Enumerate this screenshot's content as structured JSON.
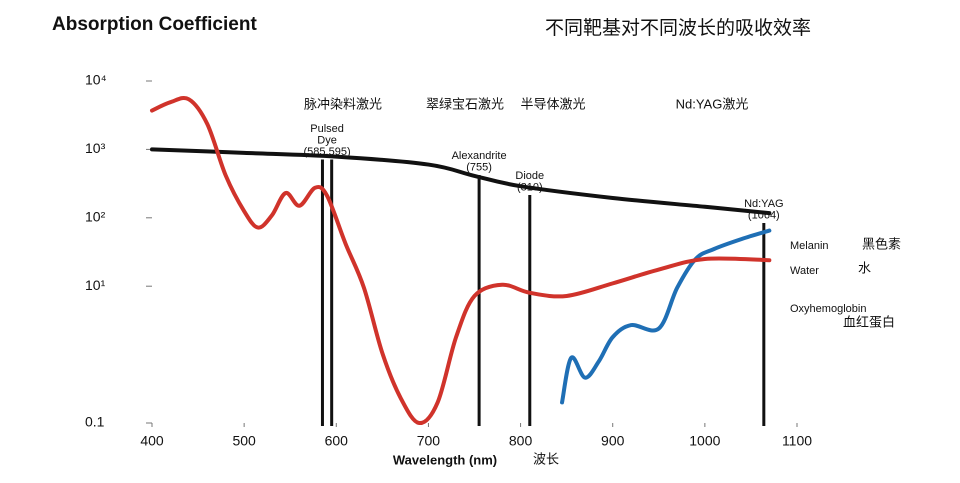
{
  "chart_data": {
    "type": "line",
    "title": "Absorption Coefficient",
    "subtitle": "不同靶基对不同波长的吸收效率",
    "xlabel": "Wavelength (nm)",
    "xlabel_cn": "波长",
    "xlim": [
      400,
      1100
    ],
    "xticks": [
      400,
      500,
      600,
      700,
      800,
      900,
      1000,
      1100
    ],
    "ylim": [
      0.1,
      10000
    ],
    "ylog": true,
    "yticks": [
      0.1,
      {
        "value": 10,
        "label": "10¹"
      },
      {
        "value": 100,
        "label": "10²"
      },
      {
        "value": 1000,
        "label": "10³"
      },
      {
        "value": 10000,
        "label": "10⁴"
      }
    ],
    "series": [
      {
        "name": "Melanin",
        "name_cn": "黑色素",
        "color": "#111111",
        "x": [
          400,
          500,
          600,
          700,
          750,
          800,
          900,
          1000,
          1070
        ],
        "values": [
          1000,
          890,
          785,
          600,
          410,
          290,
          195,
          145,
          117
        ]
      },
      {
        "name": "Water",
        "name_cn": "水",
        "color": "#1f6fb5",
        "x": [
          845,
          855,
          870,
          885,
          900,
          920,
          950,
          970,
          990,
          1010,
          1040,
          1070
        ],
        "values": [
          0.2,
          0.9,
          0.46,
          0.8,
          1.8,
          2.7,
          2.4,
          9.5,
          25,
          35,
          49,
          65
        ]
      },
      {
        "name": "Oxyhemoglobin",
        "name_cn": "血红蛋白",
        "color": "#d0332b",
        "x": [
          400,
          420,
          440,
          460,
          480,
          500,
          515,
          530,
          545,
          560,
          577,
          590,
          610,
          630,
          650,
          670,
          690,
          710,
          730,
          750,
          780,
          810,
          850,
          900,
          950,
          1000,
          1070
        ],
        "values": [
          3700,
          4900,
          5400,
          2350,
          415,
          125,
          72,
          108,
          230,
          150,
          275,
          210,
          42,
          9.5,
          1.05,
          0.23,
          0.1,
          0.2,
          1.8,
          7.2,
          10.5,
          8,
          7.2,
          11,
          17.5,
          25,
          24
        ]
      }
    ],
    "lasers": [
      {
        "name_cn": "脉冲染料激光",
        "label": [
          "Pulsed",
          "Dye",
          "(585,595)"
        ],
        "wavelengths": [
          585,
          595
        ]
      },
      {
        "name_cn": "翠绿宝石激光",
        "label": [
          "Alexandrite",
          "(755)"
        ],
        "wavelengths": [
          755
        ]
      },
      {
        "name_cn": "半导体激光",
        "label": [
          "Diode",
          "(810)"
        ],
        "wavelengths": [
          810
        ]
      },
      {
        "name_cn": "Nd:YAG激光",
        "label": [
          "Nd:YAG",
          "(1064)"
        ],
        "wavelengths": [
          1064
        ]
      }
    ]
  }
}
